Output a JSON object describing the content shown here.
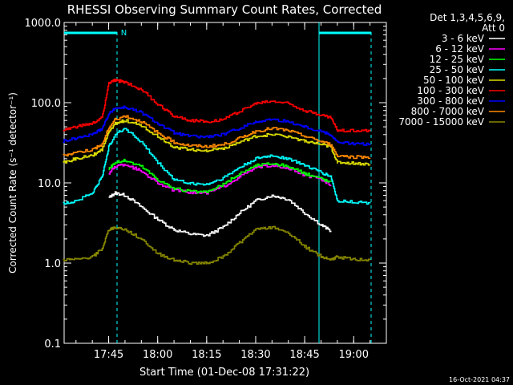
{
  "chart_data": {
    "type": "line",
    "title": "RHESSI Observing Summary Count Rates, Corrected",
    "xlabel": "Start Time (01-Dec-08 17:31:22)",
    "ylabel": "Corrected Count Rate (s⁻¹ detector⁻¹)",
    "y_scale": "log",
    "ylim": [
      0.1,
      1000.0
    ],
    "y_ticks": [
      "0.1",
      "1.0",
      "10.0",
      "100.0",
      "1000.0"
    ],
    "xlim": [
      "17:31:22",
      "19:10"
    ],
    "x_ticks": [
      "17:45",
      "18:00",
      "18:15",
      "18:30",
      "18:45",
      "19:00"
    ],
    "timestamp": "16-Oct-2021 04:37",
    "legend": {
      "placement": "right",
      "header_line1": "Det 1,3,4,5,6,9,",
      "header_line2": "Att 0"
    },
    "annotations": [
      {
        "text": "N",
        "time": "17:47",
        "color": "#00ffff"
      }
    ],
    "x": [
      "17:31",
      "17:35",
      "17:40",
      "17:43",
      "17:45",
      "17:47",
      "17:50",
      "17:55",
      "18:00",
      "18:05",
      "18:10",
      "18:15",
      "18:20",
      "18:25",
      "18:30",
      "18:35",
      "18:40",
      "18:45",
      "18:50",
      "18:53",
      "18:55",
      "19:00",
      "19:05"
    ],
    "series": [
      {
        "name": "3 - 6 keV",
        "color": "#ffffff",
        "values": [
          null,
          null,
          null,
          null,
          6.5,
          7.5,
          7.0,
          5.0,
          3.5,
          2.6,
          2.3,
          2.2,
          2.8,
          4.2,
          6.0,
          7.0,
          6.2,
          4.2,
          3.0,
          2.5,
          null,
          null,
          null
        ]
      },
      {
        "name": "6 - 12 keV",
        "color": "#ff00ff",
        "values": [
          null,
          null,
          null,
          null,
          13,
          16,
          17,
          14,
          10,
          8,
          7.6,
          7.5,
          9,
          12,
          15.5,
          16.5,
          15,
          12.5,
          11,
          9.5,
          null,
          null,
          null
        ]
      },
      {
        "name": "12 - 25 keV",
        "color": "#00ff00",
        "values": [
          null,
          null,
          null,
          null,
          15,
          18,
          19,
          16,
          11,
          8.5,
          7.8,
          7.6,
          9.5,
          13,
          16.5,
          17.5,
          16,
          13,
          11.5,
          10,
          null,
          null,
          null
        ]
      },
      {
        "name": "25 - 50 keV",
        "color": "#00ffff",
        "values": [
          5.5,
          6.0,
          7.5,
          12,
          28,
          40,
          48,
          32,
          18,
          11,
          9.8,
          9.6,
          11.5,
          15.5,
          20,
          22,
          20,
          16.5,
          13.5,
          12,
          6,
          5.8,
          5.6
        ]
      },
      {
        "name": "50 - 100 keV",
        "color": "#dddd00",
        "values": [
          18,
          20,
          22,
          26,
          42,
          55,
          60,
          52,
          38,
          28,
          26,
          25.5,
          27,
          32,
          38,
          40,
          38,
          33,
          30,
          28,
          18,
          17.5,
          17
        ]
      },
      {
        "name": "100 - 300 keV",
        "color": "#ff0000",
        "values": [
          45,
          50,
          55,
          65,
          175,
          190,
          180,
          145,
          95,
          68,
          60,
          58,
          62,
          78,
          98,
          105,
          98,
          80,
          70,
          65,
          45,
          45,
          44
        ]
      },
      {
        "name": "300 - 800 keV",
        "color": "#0000ff",
        "values": [
          33,
          36,
          40,
          48,
          72,
          85,
          88,
          75,
          55,
          42,
          38,
          37.5,
          40,
          48,
          58,
          62,
          58,
          50,
          44,
          40,
          32,
          31,
          30
        ]
      },
      {
        "name": "800 - 7000 keV",
        "color": "#ff8800",
        "values": [
          22,
          24,
          26,
          30,
          48,
          62,
          68,
          58,
          42,
          32,
          29,
          28.5,
          30,
          36,
          44,
          48,
          45,
          38,
          33,
          30,
          22,
          21,
          21
        ]
      },
      {
        "name": "7000 - 15000 keV",
        "color": "#888800",
        "values": [
          1.1,
          1.1,
          1.2,
          1.5,
          2.6,
          2.8,
          2.6,
          2.0,
          1.3,
          1.1,
          1.0,
          1.0,
          1.2,
          1.8,
          2.6,
          2.8,
          2.4,
          1.6,
          1.2,
          1.1,
          1.2,
          1.1,
          1.1
        ]
      }
    ]
  }
}
